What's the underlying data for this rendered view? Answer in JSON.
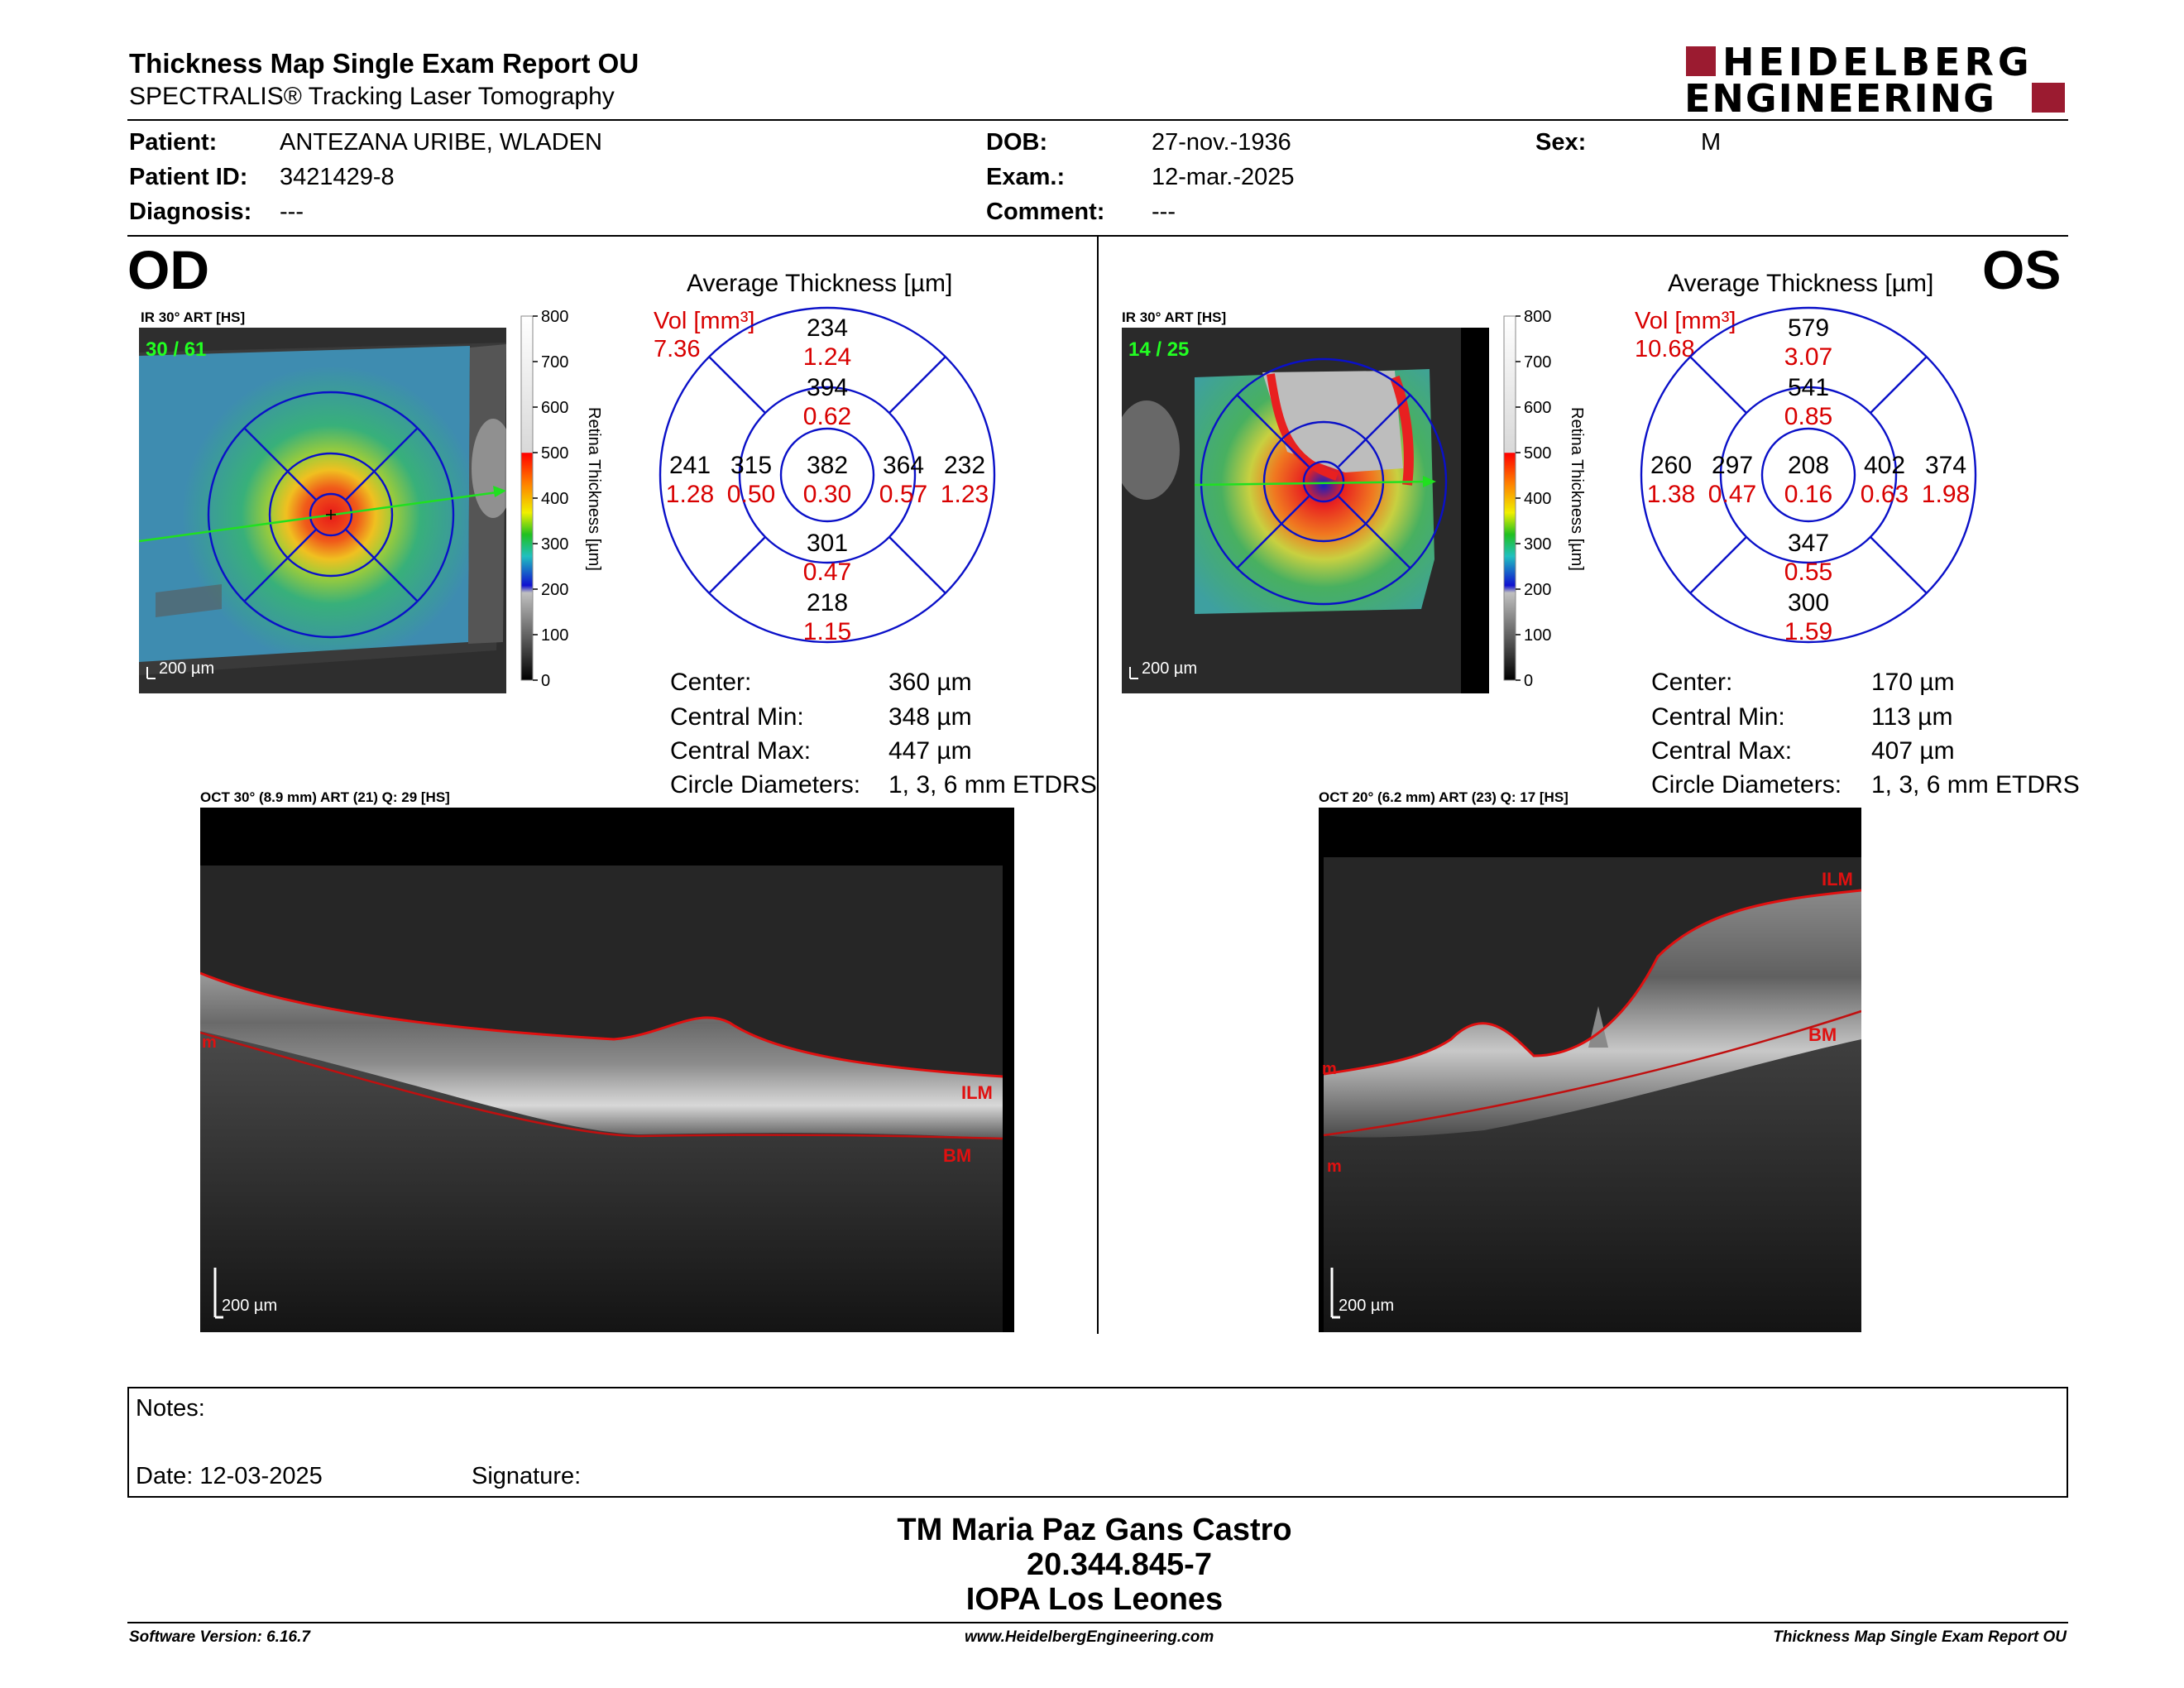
{
  "header": {
    "title": "Thickness Map Single Exam Report OU",
    "subtitle": "SPECTRALIS® Tracking Laser Tomography",
    "brand_line1": "HEIDELBERG",
    "brand_line2": "ENGINEERING",
    "brand_color": "#9b1b30"
  },
  "patient": {
    "patient_label": "Patient:",
    "patient_value": "ANTEZANA URIBE, WLADEN",
    "id_label": "Patient ID:",
    "id_value": "3421429-8",
    "diag_label": "Diagnosis:",
    "diag_value": "---",
    "dob_label": "DOB:",
    "dob_value": "27-nov.-1936",
    "exam_label": "Exam.:",
    "exam_value": "12-mar.-2025",
    "comment_label": "Comment:",
    "comment_value": "---",
    "sex_label": "Sex:",
    "sex_value": "M"
  },
  "od": {
    "eye_label": "OD",
    "ir_label": "IR 30° ART [HS]",
    "frame_counter": "30 / 61",
    "scale_label": "200 µm",
    "avg_title": "Average Thickness [µm]",
    "vol_label": "Vol [mm³]",
    "vol_value": "7.36",
    "sectors": {
      "outer_top": [
        "234",
        "1.24"
      ],
      "inner_top": [
        "394",
        "0.62"
      ],
      "outer_left": [
        "241",
        "1.28"
      ],
      "inner_left": [
        "315",
        "0.50"
      ],
      "center": [
        "382",
        "0.30"
      ],
      "inner_right": [
        "364",
        "0.57"
      ],
      "outer_right": [
        "232",
        "1.23"
      ],
      "inner_bottom": [
        "301",
        "0.47"
      ],
      "outer_bottom": [
        "218",
        "1.15"
      ]
    },
    "stats": [
      {
        "label": "Center:",
        "value": "360 µm"
      },
      {
        "label": "Central Min:",
        "value": "348 µm"
      },
      {
        "label": "Central Max:",
        "value": "447 µm"
      },
      {
        "label": "Circle Diameters:",
        "value": "1, 3, 6 mm ETDRS"
      }
    ],
    "oct_label": "OCT 30° (8.9 mm) ART (21) Q: 29 [HS]",
    "oct_scale": "200 µm",
    "ilm_label": "ILM",
    "bm_label": "BM",
    "m_label": "m"
  },
  "os": {
    "eye_label": "OS",
    "ir_label": "IR 30° ART [HS]",
    "frame_counter": "14 / 25",
    "scale_label": "200 µm",
    "avg_title": "Average Thickness [µm]",
    "vol_label": "Vol [mm³]",
    "vol_value": "10.68",
    "sectors": {
      "outer_top": [
        "579",
        "3.07"
      ],
      "inner_top": [
        "541",
        "0.85"
      ],
      "outer_left": [
        "260",
        "1.38"
      ],
      "inner_left": [
        "297",
        "0.47"
      ],
      "center": [
        "208",
        "0.16"
      ],
      "inner_right": [
        "402",
        "0.63"
      ],
      "outer_right": [
        "374",
        "1.98"
      ],
      "inner_bottom": [
        "347",
        "0.55"
      ],
      "outer_bottom": [
        "300",
        "1.59"
      ]
    },
    "stats": [
      {
        "label": "Center:",
        "value": "170 µm"
      },
      {
        "label": "Central Min:",
        "value": "113 µm"
      },
      {
        "label": "Central Max:",
        "value": "407 µm"
      },
      {
        "label": "Circle Diameters:",
        "value": "1, 3, 6 mm ETDRS"
      }
    ],
    "oct_label": "OCT 20° (6.2 mm) ART (23) Q: 17 [HS]",
    "oct_scale": "200 µm",
    "ilm_label": "ILM",
    "bm_label": "BM",
    "m_label": "m"
  },
  "colorbar": {
    "ticks": [
      "800",
      "700",
      "600",
      "500",
      "400",
      "300",
      "200",
      "100",
      "0"
    ],
    "axis_title": "Retina Thickness [µm]"
  },
  "notes": {
    "notes_label": "Notes:",
    "date_label": "Date: 12-03-2025",
    "signature_label": "Signature:"
  },
  "signer": {
    "name": "TM Maria Paz Gans Castro",
    "rut": "20.344.845-7",
    "clinic": "IOPA Los Leones"
  },
  "footer": {
    "software": "Software Version: 6.16.7",
    "website": "www.HeidelbergEngineering.com",
    "report": "Thickness Map Single Exam Report OU"
  }
}
